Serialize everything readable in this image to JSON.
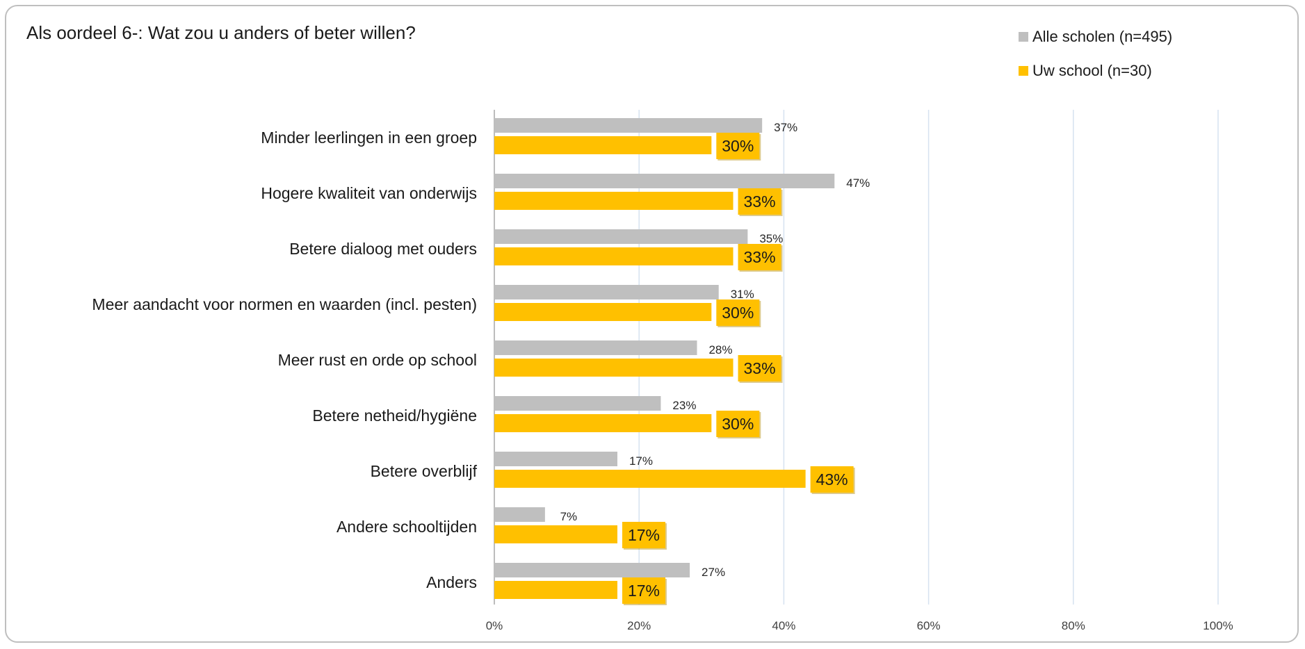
{
  "chart_data": {
    "type": "bar",
    "orientation": "horizontal",
    "title": "Als oordeel 6-: Wat zou u anders of beter willen?",
    "categories": [
      "Minder leerlingen in een groep ",
      "Hogere kwaliteit van onderwijs",
      "Betere dialoog met ouders",
      "Meer aandacht voor normen en waarden (incl. pesten)",
      "Meer rust en orde op school",
      "Betere netheid/hygiëne",
      "Betere overblijf",
      "Andere schooltijden",
      "Anders"
    ],
    "series": [
      {
        "name": "Alle scholen (n=495)",
        "color": "#bfbfbf",
        "values": [
          37,
          47,
          35,
          31,
          28,
          23,
          17,
          7,
          27
        ],
        "labels": [
          "37%",
          "47%",
          "35%",
          "31%",
          "28%",
          "23%",
          "17%",
          "7%",
          "27%"
        ]
      },
      {
        "name": "Uw school (n=30)",
        "color": "#ffc000",
        "values": [
          30,
          33,
          33,
          30,
          33,
          30,
          43,
          17,
          17
        ],
        "labels": [
          "30%",
          "33%",
          "33%",
          "30%",
          "33%",
          "30%",
          "43%",
          "17%",
          "17%"
        ]
      }
    ],
    "xlim": [
      0,
      100
    ],
    "x_ticks": [
      "0%",
      "20%",
      "40%",
      "60%",
      "80%",
      "100%"
    ],
    "grid": true,
    "legend_position": "top-right"
  }
}
